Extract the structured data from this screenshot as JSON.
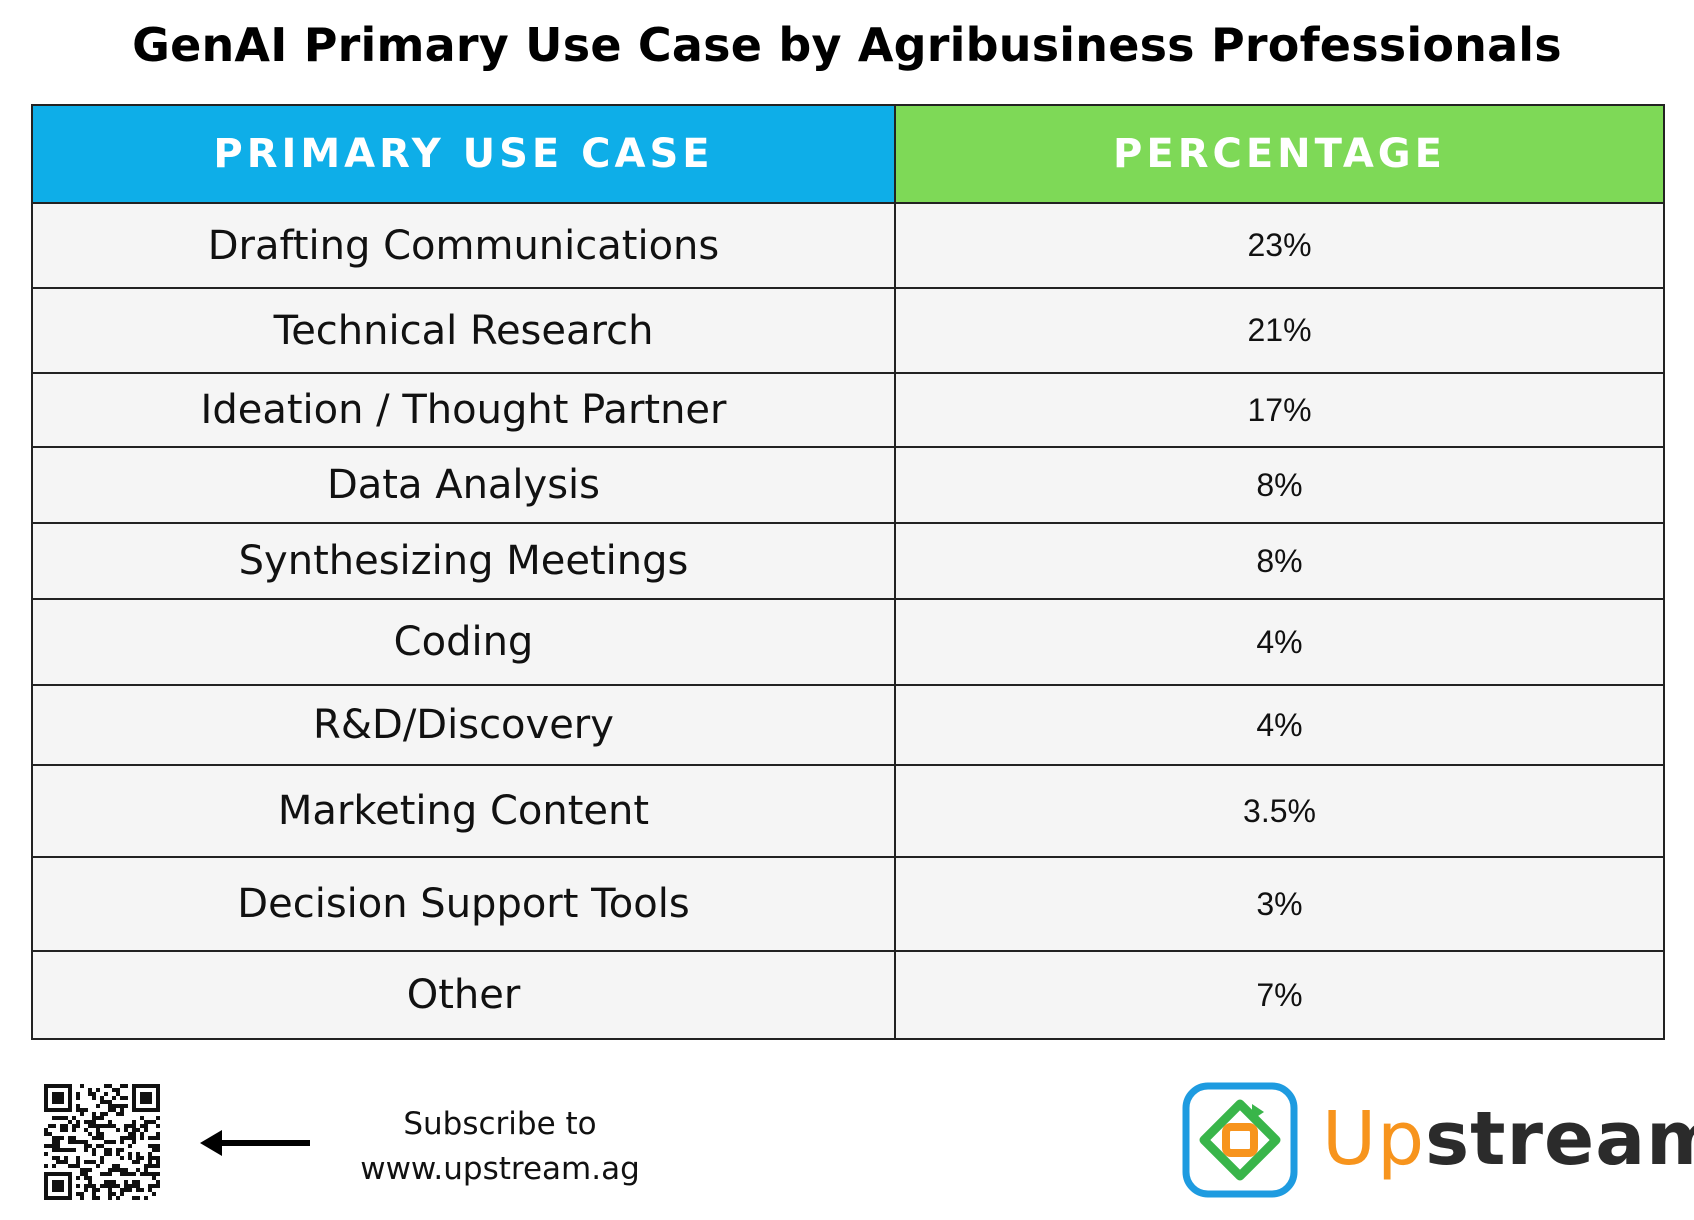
{
  "chart_data": {
    "type": "table",
    "title": "GenAI Primary Use Case by Agribusiness Professionals",
    "columns": [
      "PRIMARY USE CASE",
      "PERCENTAGE"
    ],
    "rows": [
      {
        "label": "Drafting Communications",
        "value_text": "23%",
        "value": 23
      },
      {
        "label": "Technical Research",
        "value_text": "21%",
        "value": 21
      },
      {
        "label": "Ideation / Thought Partner",
        "value_text": "17%",
        "value": 17
      },
      {
        "label": "Data Analysis",
        "value_text": "8%",
        "value": 8
      },
      {
        "label": "Synthesizing Meetings",
        "value_text": "8%",
        "value": 8
      },
      {
        "label": "Coding",
        "value_text": "4%",
        "value": 4
      },
      {
        "label": "R&D/Discovery",
        "value_text": "4%",
        "value": 4
      },
      {
        "label": "Marketing Content",
        "value_text": "3.5%",
        "value": 3.5
      },
      {
        "label": "Decision Support Tools",
        "value_text": "3%",
        "value": 3
      },
      {
        "label": "Other",
        "value_text": "7%",
        "value": 7
      }
    ]
  },
  "colors": {
    "header_use_case": "#0eaee8",
    "header_percentage": "#7ed957",
    "row_background": "#f5f5f5",
    "grid": "#222222",
    "brand_orange": "#f7941d",
    "brand_green": "#39b54a",
    "brand_blue": "#1e9be0"
  },
  "footer": {
    "subscribe_line1": "Subscribe to",
    "subscribe_line2": "www.upstream.ag",
    "qr_icon": "qr-code-icon",
    "arrow_icon": "arrow-left-icon",
    "logo_icon": "upstream-logo-icon",
    "logo_text_up": "Up",
    "logo_text_rest": "stream"
  }
}
